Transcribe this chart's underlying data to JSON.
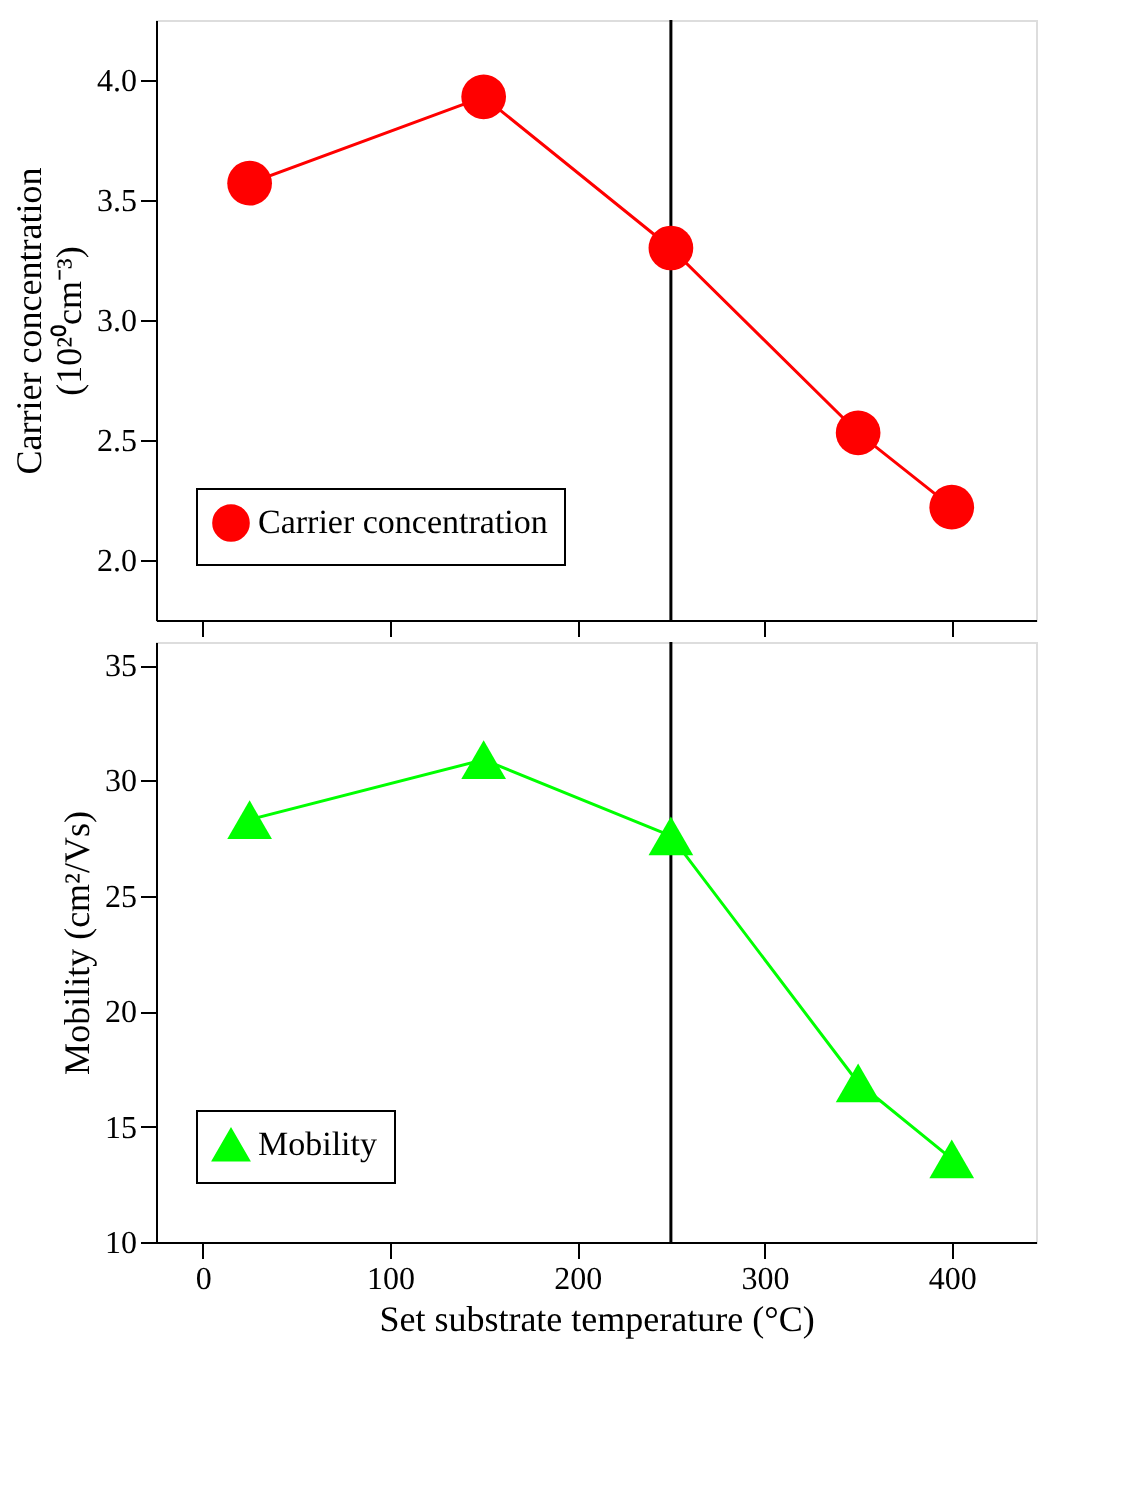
{
  "chart_data": [
    {
      "type": "line",
      "ylabel": "Carrier concentration\n(10²⁰cm⁻³)",
      "x": [
        25,
        150,
        250,
        350,
        400
      ],
      "xlim": [
        -25,
        445
      ],
      "xticks": [
        0,
        100,
        200,
        300,
        400
      ],
      "ylim": [
        1.75,
        4.25
      ],
      "yticks": [
        {
          "value": 2,
          "label": "2.0"
        },
        2.5,
        {
          "value": 3,
          "label": "3.0"
        },
        3.5,
        {
          "value": 4,
          "label": "4.0"
        }
      ],
      "series": [
        {
          "name": "Carrier concentration",
          "color": "#ff0000",
          "values": [
            3.57,
            3.93,
            3.3,
            2.53,
            2.22
          ]
        }
      ],
      "marker": "circle",
      "line_style": "solid",
      "legend": "bottom left",
      "grid": false,
      "tick_labels": "y",
      "ref_lines": [
        {
          "axis": "x",
          "value": 250,
          "color": "#000000"
        }
      ]
    },
    {
      "type": "line",
      "xlabel": "Set substrate temperature (°C)",
      "ylabel": "Mobility (cm²/Vs)",
      "x": [
        25,
        150,
        250,
        350,
        400
      ],
      "xlim": [
        -25,
        445
      ],
      "xticks": [
        0,
        100,
        200,
        300,
        400
      ],
      "ylim": [
        10,
        36
      ],
      "yticks": [
        10,
        15,
        20,
        25,
        30,
        35
      ],
      "series": [
        {
          "name": "Mobility",
          "color": "#00ff00",
          "values": [
            28.3,
            30.9,
            27.6,
            16.9,
            13.6
          ]
        }
      ],
      "marker": "triangle",
      "line_style": "solid",
      "legend": "bottom left",
      "grid": false,
      "ref_lines": [
        {
          "axis": "x",
          "value": 250,
          "color": "#000000"
        }
      ]
    }
  ]
}
